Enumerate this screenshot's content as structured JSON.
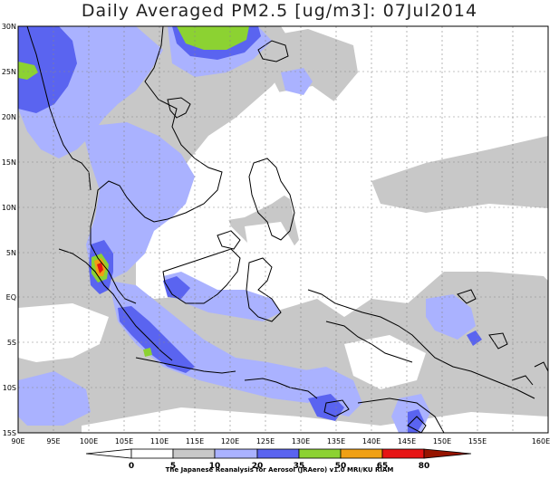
{
  "title": "Daily Averaged PM2.5 [ug/m3]: 07Jul2014",
  "credit": "The Japanese Reanalysis for Aerosol (JRAero) v1.0 MRI/KU RIAM",
  "lat_ticks": [
    "30N",
    "25N",
    "20N",
    "15N",
    "10N",
    "5N",
    "EQ",
    "5S",
    "10S",
    "15S"
  ],
  "lon_ticks": [
    "90E",
    "95E",
    "100E",
    "105E",
    "110E",
    "115E",
    "120E",
    "125E",
    "130E",
    "135E",
    "140E",
    "145E",
    "150E",
    "155E",
    "160E"
  ],
  "colorbar": {
    "labels": [
      "0",
      "5",
      "10",
      "20",
      "35",
      "50",
      "65",
      "80"
    ],
    "colors": [
      "#ffffff",
      "#c8c8c8",
      "#aab2ff",
      "#5a64f0",
      "#8cd232",
      "#f0a014",
      "#e61414",
      "#961400"
    ]
  }
}
